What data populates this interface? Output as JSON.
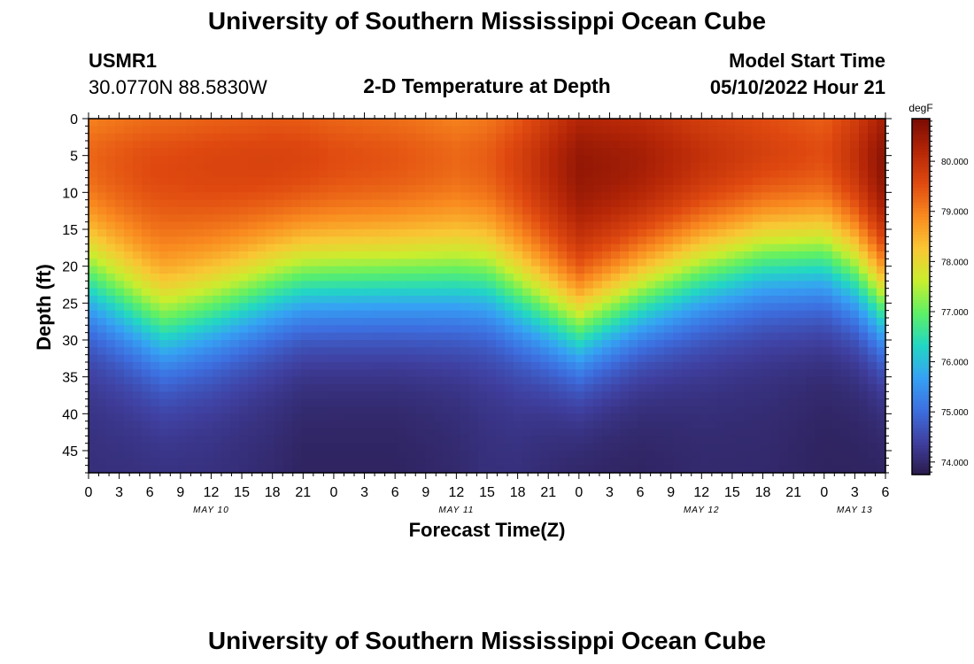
{
  "header": {
    "title": "University of Southern Mississippi Ocean Cube",
    "station_id": "USMR1",
    "coordinates": "30.0770N  88.5830W",
    "plot_title": "2-D Temperature at Depth",
    "model_start_label": "Model Start Time",
    "model_start_value": "05/10/2022 Hour 21"
  },
  "footer": {
    "title": "University of Southern Mississippi Ocean Cube"
  },
  "chart_data": {
    "type": "heatmap",
    "title": "2-D Temperature at Depth",
    "xlabel": "Forecast Time(Z)",
    "ylabel": "Depth (ft)",
    "colorbar_unit": "degF",
    "x_tick_labels": [
      "0",
      "3",
      "6",
      "9",
      "12",
      "15",
      "18",
      "21",
      "0",
      "3",
      "6",
      "9",
      "12",
      "15",
      "18",
      "21",
      "0",
      "3",
      "6",
      "9",
      "12",
      "15",
      "18",
      "21",
      "0",
      "3",
      "6"
    ],
    "x_date_labels": [
      {
        "label": "MAY 10",
        "hour_index": 12
      },
      {
        "label": "MAY 11",
        "hour_index": 36
      },
      {
        "label": "MAY 12",
        "hour_index": 60
      },
      {
        "label": "MAY 13",
        "hour_index": 75
      }
    ],
    "x_range_hours": [
      0,
      78
    ],
    "y_tick_labels": [
      "0",
      "5",
      "10",
      "15",
      "20",
      "25",
      "30",
      "35",
      "40",
      "45"
    ],
    "y_ticks": [
      0,
      5,
      10,
      15,
      20,
      25,
      30,
      35,
      40,
      45
    ],
    "y_range_ft": [
      0,
      48
    ],
    "colorbar_ticks": [
      "74.000",
      "75.000",
      "76.000",
      "77.000",
      "78.000",
      "79.000",
      "80.000"
    ],
    "colorbar_values": [
      74,
      75,
      76,
      77,
      78,
      79,
      80
    ],
    "color_range": [
      73.75,
      80.85
    ],
    "colormap_stops": [
      "#2a1a4a",
      "#3f3f9f",
      "#3d6fe0",
      "#36a1f4",
      "#22d7c4",
      "#5df066",
      "#c9ee2e",
      "#f9c734",
      "#f98a1f",
      "#e04a10",
      "#b52607",
      "#7a0c03"
    ],
    "sample_profile_hours": [
      0,
      6,
      7.5,
      12,
      18,
      21,
      24,
      30,
      36,
      39,
      42,
      45,
      48,
      54,
      60,
      66,
      72,
      75,
      78
    ],
    "sample_thermocline_depth_ft": [
      22,
      27,
      28,
      26,
      23,
      22,
      22,
      22,
      22,
      22,
      24,
      26,
      28,
      24,
      21,
      19,
      19,
      21,
      25
    ],
    "sample_surface_temp_degF": [
      79.2,
      79.4,
      79.4,
      79.5,
      79.6,
      79.6,
      79.5,
      79.4,
      79.2,
      79.3,
      79.6,
      80.0,
      80.4,
      80.3,
      80.0,
      79.8,
      79.6,
      80.0,
      80.6
    ],
    "sample_bottom_temp_degF": [
      74.1,
      74.1,
      74.1,
      74.1,
      74.0,
      73.9,
      73.9,
      73.9,
      74.0,
      74.1,
      74.1,
      74.0,
      73.9,
      73.9,
      74.0,
      74.0,
      73.9,
      73.9,
      73.9
    ]
  }
}
